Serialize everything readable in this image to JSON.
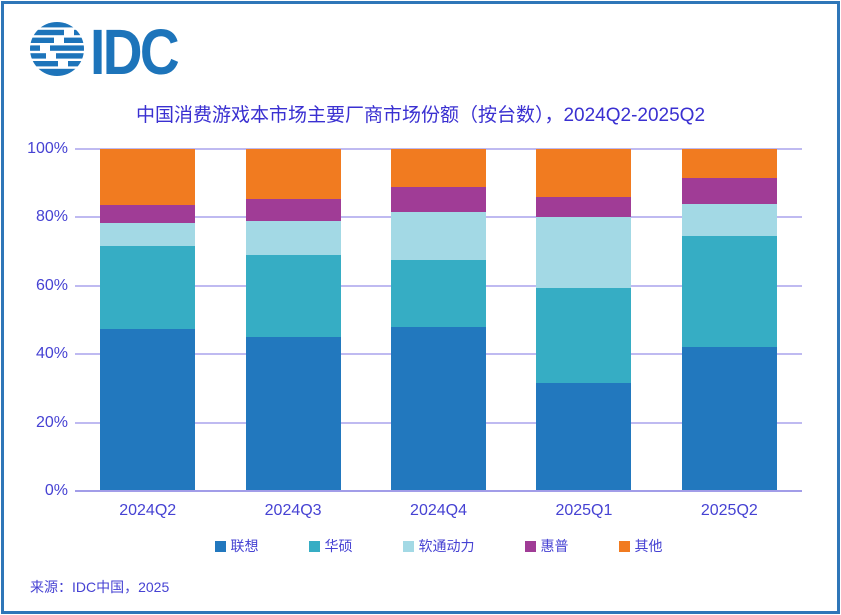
{
  "logo": {
    "text": "IDC"
  },
  "title": "中国消费游戏本市场主要厂商市场份额（按台数），2024Q2-2025Q2",
  "source": "来源：IDC中国，2025",
  "colors": {
    "border": "#2e76b8",
    "logo": "#1d74ba",
    "title_text": "#3a30d1",
    "axis_text": "#4642d3",
    "gridline": "#bfbaf1"
  },
  "chart_data": {
    "type": "bar",
    "stacked": true,
    "title": "中国消费游戏本市场主要厂商市场份额（按台数），2024Q2-2025Q2",
    "xlabel": "",
    "ylabel": "",
    "ylim": [
      0,
      100
    ],
    "y_ticks": [
      "0%",
      "20%",
      "40%",
      "60%",
      "80%",
      "100%"
    ],
    "grid": true,
    "legend_position": "bottom",
    "categories": [
      "2024Q2",
      "2024Q3",
      "2024Q4",
      "2025Q1",
      "2025Q2"
    ],
    "series": [
      {
        "name": "联想",
        "color": "#2278be",
        "values": [
          47.5,
          45,
          48,
          31.5,
          42
        ]
      },
      {
        "name": "华硕",
        "color": "#36adc4",
        "values": [
          24,
          24,
          19.5,
          28,
          32.5
        ]
      },
      {
        "name": "软通动力",
        "color": "#a3d9e5",
        "values": [
          7,
          10,
          14,
          20.5,
          9.5
        ]
      },
      {
        "name": "惠普",
        "color": "#a03c96",
        "values": [
          5,
          6.5,
          7.5,
          6,
          7.5
        ]
      },
      {
        "name": "其他",
        "color": "#f17b20",
        "values": [
          16.5,
          14.5,
          11,
          14,
          8.5
        ]
      }
    ]
  }
}
